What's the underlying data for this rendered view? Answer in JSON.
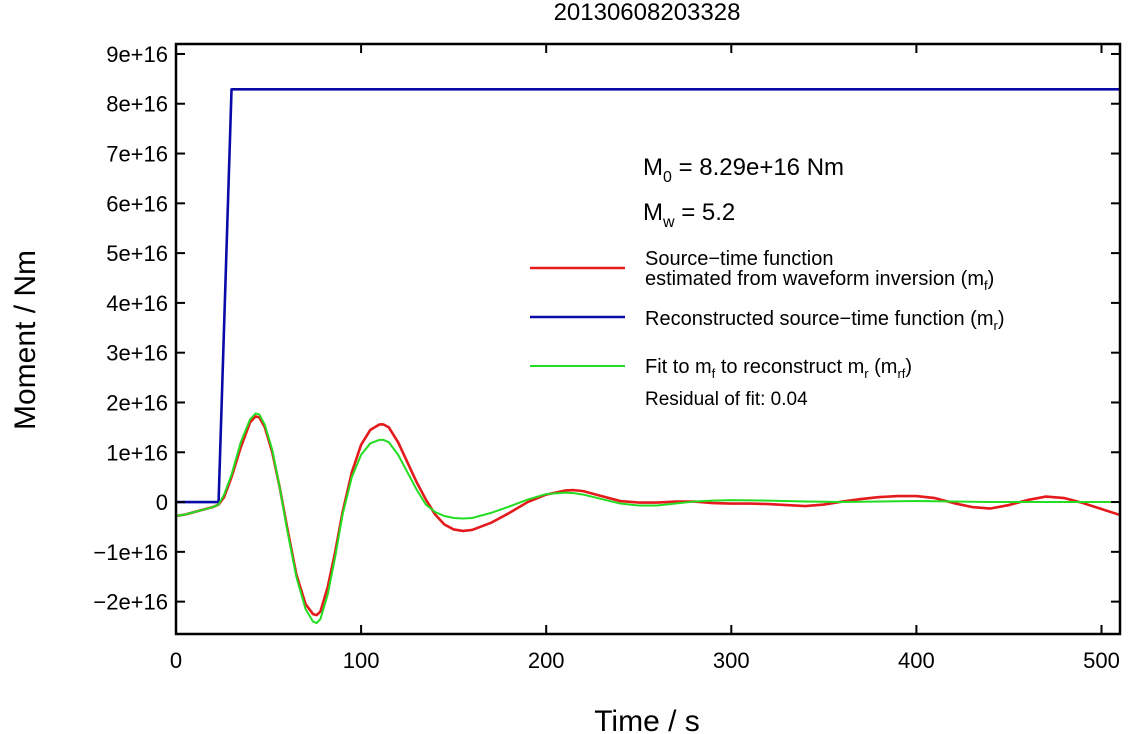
{
  "chart_data": {
    "type": "line",
    "title": "20130608203328",
    "xlabel": "Time / s",
    "ylabel": "Moment / Nm",
    "xlim": [
      0,
      510
    ],
    "ylim": [
      -2.65e+16,
      9.2e+16
    ],
    "xticks": [
      0,
      100,
      200,
      300,
      400,
      500
    ],
    "yticks": [
      -2e+16,
      -1e+16,
      0,
      1e+16,
      2e+16,
      3e+16,
      4e+16,
      5e+16,
      6e+16,
      7e+16,
      8e+16,
      9e+16
    ],
    "xtick_labels": [
      "0",
      "100",
      "200",
      "300",
      "400",
      "500"
    ],
    "ytick_labels": [
      "−2e+16",
      "−1e+16",
      "0",
      "1e+16",
      "2e+16",
      "3e+16",
      "4e+16",
      "5e+16",
      "6e+16",
      "7e+16",
      "8e+16",
      "9e+16"
    ],
    "grid": false,
    "legend_placement": "right",
    "annotations": {
      "m0_symbol": "M",
      "m0_sub": "0",
      "m0_text": " = 8.29e+16 Nm",
      "mw_symbol": "M",
      "mw_sub": "w",
      "mw_text": " = 5.2",
      "residual": "Residual of fit: 0.04"
    },
    "legend": [
      {
        "key": "mf",
        "color": "#e41a1c",
        "lines": [
          {
            "text": "Source−time function",
            "sub": "",
            "tail": ""
          },
          {
            "text": "estimated from waveform inversion (m",
            "sub": "f",
            "tail": ")"
          }
        ]
      },
      {
        "key": "mr",
        "color": "#0a0aa8",
        "lines": [
          {
            "text": "Reconstructed source−time function (m",
            "sub": "r",
            "tail": ")"
          }
        ]
      },
      {
        "key": "mrf",
        "color": "#22dd22",
        "lines": [
          {
            "text": "Fit to m",
            "sub": "f",
            "tail": " to reconstruct m",
            "sub2": "r",
            "tail2": " (m",
            "sub3": "rf",
            "tail3": ")"
          }
        ]
      }
    ],
    "series": [
      {
        "key": "mr",
        "color": "#0a0aa8",
        "x": [
          0,
          23,
          30,
          510
        ],
        "y": [
          0,
          0,
          8.29e+16,
          8.29e+16
        ]
      },
      {
        "key": "mf",
        "color": "#e41a1c",
        "x": [
          0,
          5,
          10,
          15,
          20,
          23,
          26,
          30,
          35,
          40,
          43,
          45,
          48,
          52,
          56,
          60,
          65,
          70,
          74,
          76,
          78,
          82,
          86,
          90,
          95,
          100,
          105,
          110,
          112,
          115,
          120,
          125,
          130,
          135,
          140,
          145,
          150,
          155,
          160,
          170,
          180,
          190,
          200,
          210,
          215,
          220,
          230,
          240,
          250,
          260,
          270,
          280,
          290,
          300,
          310,
          320,
          330,
          340,
          350,
          360,
          370,
          380,
          390,
          400,
          410,
          420,
          430,
          440,
          450,
          460,
          470,
          480,
          490,
          500,
          510
        ],
        "y": [
          -2800000000000000.0,
          -2500000000000000.0,
          -2000000000000000.0,
          -1500000000000000.0,
          -1000000000000000.0,
          -500000000000000.0,
          1000000000000000.0,
          5000000000000000.0,
          1.1e+16,
          1.6e+16,
          1.72e+16,
          1.7e+16,
          1.5e+16,
          1e+16,
          3000000000000000.0,
          -5000000000000000.0,
          -1.45e+16,
          -2.05e+16,
          -2.25e+16,
          -2.27e+16,
          -2.2e+16,
          -1.7e+16,
          -1e+16,
          -2000000000000000.0,
          6000000000000000.0,
          1.15e+16,
          1.45e+16,
          1.56e+16,
          1.56e+16,
          1.5e+16,
          1.2e+16,
          8000000000000000.0,
          4000000000000000.0,
          500000000000000.0,
          -2500000000000000.0,
          -4500000000000000.0,
          -5500000000000000.0,
          -5800000000000000.0,
          -5600000000000000.0,
          -4200000000000000.0,
          -2200000000000000.0,
          0,
          1500000000000000.0,
          2300000000000000.0,
          2400000000000000.0,
          2200000000000000.0,
          1200000000000000.0,
          200000000000000.0,
          -100000000000000.0,
          -100000000000000.0,
          100000000000000.0,
          100000000000000.0,
          -200000000000000.0,
          -300000000000000.0,
          -300000000000000.0,
          -400000000000000.0,
          -600000000000000.0,
          -800000000000000.0,
          -500000000000000.0,
          100000000000000.0,
          600000000000000.0,
          1000000000000000.0,
          1200000000000000.0,
          1200000000000000.0,
          800000000000000.0,
          -200000000000000.0,
          -1000000000000000.0,
          -1300000000000000.0,
          -600000000000000.0,
          400000000000000.0,
          1100000000000000.0,
          800000000000000.0,
          -200000000000000.0,
          -1400000000000000.0,
          -2600000000000000.0
        ]
      },
      {
        "key": "mrf",
        "color": "#22dd22",
        "x": [
          0,
          5,
          10,
          15,
          20,
          23,
          26,
          30,
          35,
          40,
          43,
          45,
          48,
          52,
          56,
          60,
          65,
          70,
          74,
          76,
          78,
          82,
          86,
          90,
          95,
          100,
          105,
          110,
          112,
          115,
          120,
          125,
          130,
          135,
          140,
          145,
          150,
          155,
          160,
          170,
          180,
          190,
          200,
          210,
          215,
          220,
          230,
          240,
          250,
          260,
          270,
          280,
          290,
          300,
          320,
          340,
          360,
          380,
          400,
          420,
          440,
          460,
          480,
          500,
          510
        ],
        "y": [
          -2800000000000000.0,
          -2500000000000000.0,
          -2000000000000000.0,
          -1500000000000000.0,
          -1000000000000000.0,
          -500000000000000.0,
          1500000000000000.0,
          5500000000000000.0,
          1.2e+16,
          1.66e+16,
          1.78e+16,
          1.76e+16,
          1.55e+16,
          1.05e+16,
          3000000000000000.0,
          -5500000000000000.0,
          -1.5e+16,
          -2.15e+16,
          -2.4e+16,
          -2.43e+16,
          -2.35e+16,
          -1.85e+16,
          -1.1e+16,
          -2500000000000000.0,
          5000000000000000.0,
          9500000000000000.0,
          1.18e+16,
          1.25e+16,
          1.25e+16,
          1.2e+16,
          9500000000000000.0,
          6000000000000000.0,
          2500000000000000.0,
          -500000000000000.0,
          -2000000000000000.0,
          -2800000000000000.0,
          -3200000000000000.0,
          -3300000000000000.0,
          -3200000000000000.0,
          -2200000000000000.0,
          -900000000000000.0,
          500000000000000.0,
          1600000000000000.0,
          1900000000000000.0,
          1800000000000000.0,
          1500000000000000.0,
          600000000000000.0,
          -300000000000000.0,
          -700000000000000.0,
          -700000000000000.0,
          -300000000000000.0,
          100000000000000.0,
          300000000000000.0,
          400000000000000.0,
          300000000000000.0,
          100000000000000.0,
          0,
          100000000000000.0,
          200000000000000.0,
          100000000000000.0,
          0,
          0,
          0,
          0,
          0
        ]
      }
    ]
  }
}
